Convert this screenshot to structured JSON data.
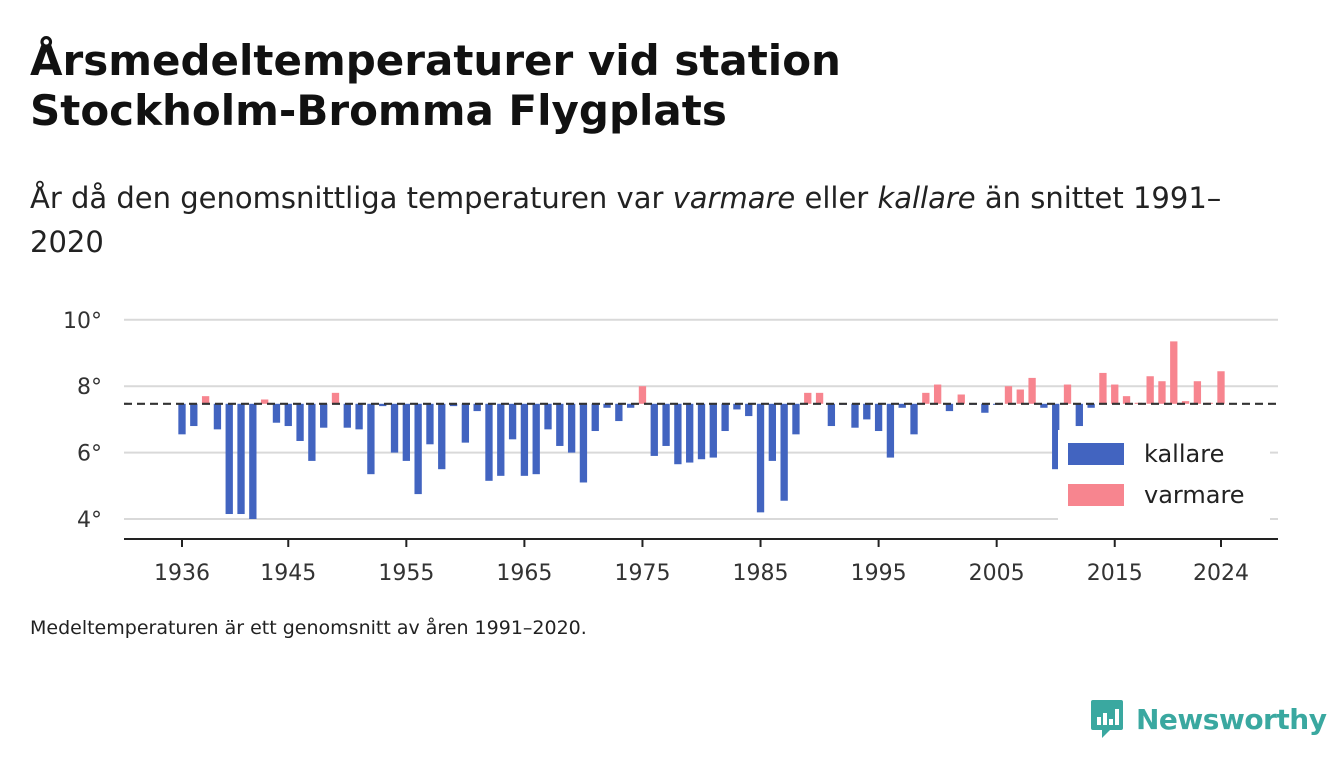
{
  "title": "Årsmedeltemperaturer vid station Stockholm-Bromma Flygplats",
  "subtitle": {
    "part1": "År då den genomsnittliga temperaturen var ",
    "em1": "varmare",
    "part2": " eller ",
    "em2": "kallare",
    "part3": " än snittet 1991–2020"
  },
  "footnote": "Medeltemperaturen är ett genomsnitt av åren 1991–2020.",
  "brand": "Newsworthy",
  "colors": {
    "kallare": "#4264c0",
    "varmare": "#f7858f",
    "brand": "#3aa8a0"
  },
  "chart_data": {
    "type": "bar",
    "baseline": 7.47,
    "ylim": [
      3.5,
      10
    ],
    "y_ticks": [
      4,
      6,
      8,
      10
    ],
    "y_tick_labels": [
      "4°",
      "6°",
      "8°",
      "10°"
    ],
    "x_ticks": [
      1936,
      1945,
      1955,
      1965,
      1975,
      1985,
      1995,
      2005,
      2015,
      2024
    ],
    "xlim": [
      1931,
      2029
    ],
    "legend": {
      "placement": "right",
      "kallare": "kallare",
      "varmare": "varmare"
    },
    "grid": true,
    "x": [
      1936,
      1937,
      1938,
      1939,
      1940,
      1941,
      1942,
      1943,
      1944,
      1945,
      1946,
      1947,
      1948,
      1949,
      1950,
      1951,
      1952,
      1953,
      1954,
      1955,
      1956,
      1957,
      1958,
      1959,
      1960,
      1961,
      1962,
      1963,
      1964,
      1965,
      1966,
      1967,
      1968,
      1969,
      1970,
      1971,
      1972,
      1973,
      1974,
      1975,
      1976,
      1977,
      1978,
      1979,
      1980,
      1981,
      1982,
      1983,
      1984,
      1985,
      1986,
      1987,
      1988,
      1989,
      1990,
      1991,
      1992,
      1993,
      1994,
      1995,
      1996,
      1997,
      1998,
      1999,
      2000,
      2001,
      2002,
      2003,
      2004,
      2005,
      2006,
      2007,
      2008,
      2009,
      2010,
      2011,
      2012,
      2013,
      2014,
      2015,
      2016,
      2017,
      2018,
      2019,
      2020,
      2021,
      2022,
      2023,
      2024
    ],
    "values": [
      6.55,
      6.8,
      7.7,
      6.7,
      4.15,
      4.15,
      4.0,
      7.6,
      6.9,
      6.8,
      6.35,
      5.75,
      6.75,
      7.8,
      6.75,
      6.7,
      5.35,
      7.4,
      6.0,
      5.75,
      4.75,
      6.25,
      5.5,
      7.4,
      6.3,
      7.25,
      5.15,
      5.3,
      6.4,
      5.3,
      5.35,
      6.7,
      6.2,
      6.0,
      5.1,
      6.65,
      7.35,
      6.95,
      7.35,
      8.0,
      5.9,
      6.2,
      5.65,
      5.7,
      5.8,
      5.85,
      6.65,
      7.3,
      7.1,
      4.2,
      5.75,
      4.55,
      6.55,
      7.8,
      7.8,
      6.8,
      7.45,
      6.75,
      7.0,
      6.65,
      5.85,
      7.35,
      6.55,
      7.8,
      8.05,
      7.25,
      7.75,
      7.45,
      7.2,
      7.45,
      8.0,
      7.9,
      8.25,
      7.35,
      5.5,
      8.05,
      6.8,
      7.35,
      8.4,
      8.05,
      7.7,
      7.5,
      8.3,
      8.15,
      9.35,
      7.55,
      8.15,
      7.5,
      8.45
    ]
  }
}
